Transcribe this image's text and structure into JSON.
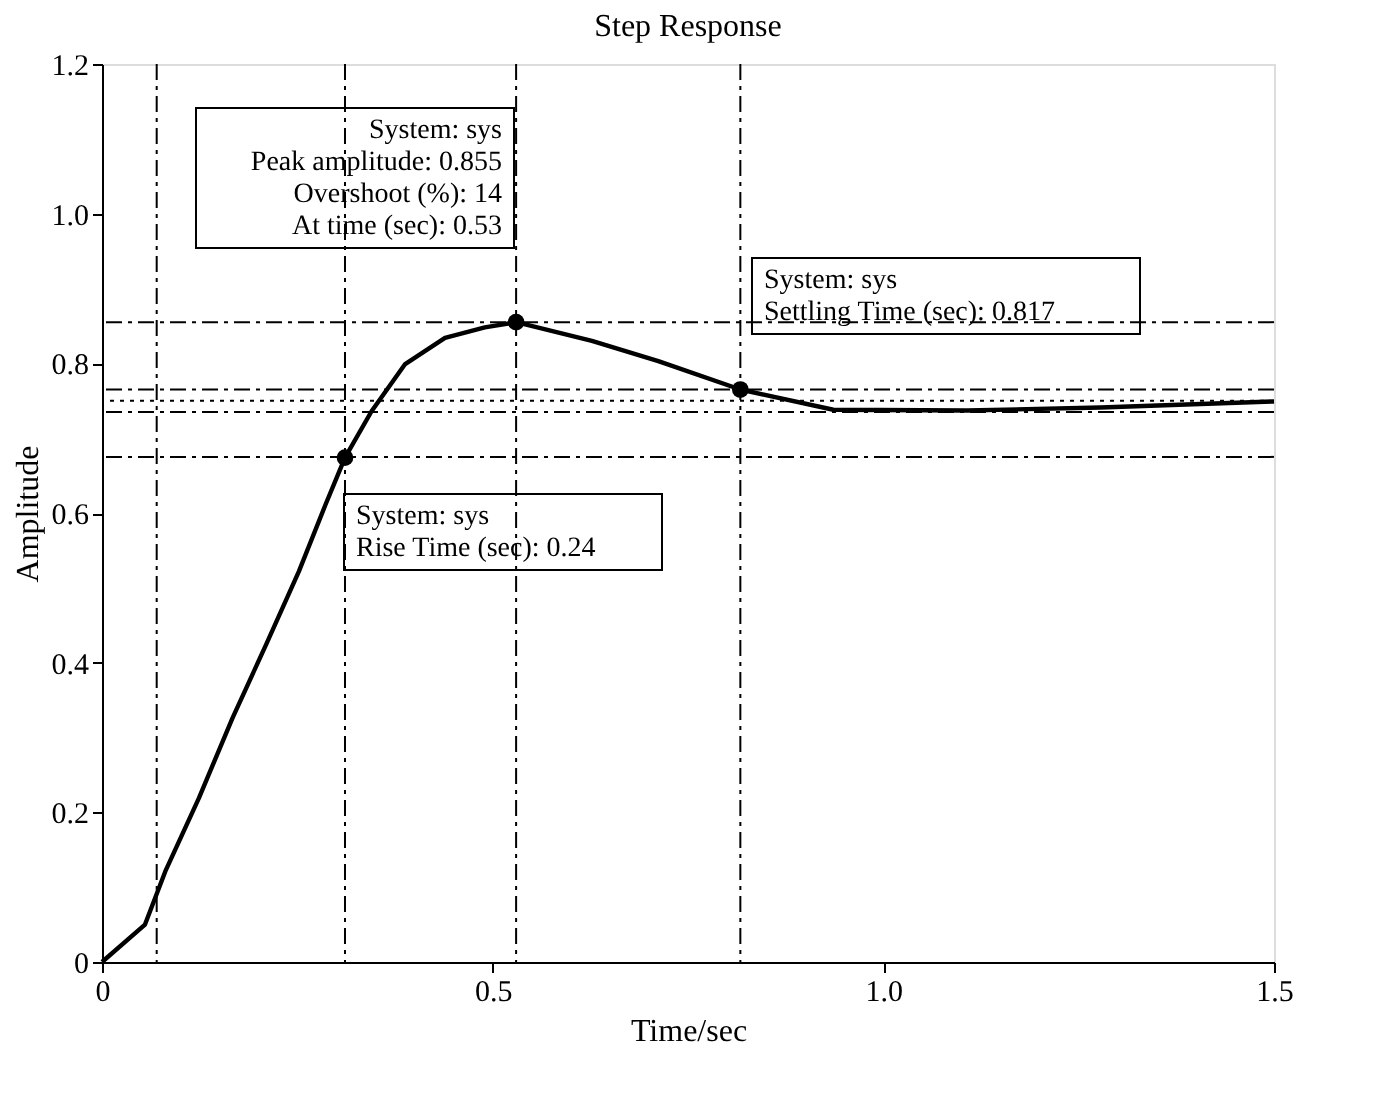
{
  "chart_data": {
    "type": "line",
    "title": "Step Response",
    "xlabel": "Time/sec",
    "ylabel": "Amplitude",
    "xlim": [
      0,
      1.5
    ],
    "xticks": [
      0,
      0.5,
      {
        "value": 1.0,
        "label": "1.0"
      },
      1.5
    ],
    "ylim": [
      0,
      1.2
    ],
    "yticks": [
      0,
      0.2,
      0.4,
      0.6,
      0.8,
      {
        "value": 1.0,
        "label": "1.0"
      },
      1.2
    ],
    "grid": false,
    "series": [
      {
        "color": "#000000",
        "line_style": "solid",
        "x": [
          0,
          0.055,
          0.081,
          0.124,
          0.167,
          0.21,
          0.252,
          0.286,
          0.311,
          0.345,
          0.388,
          0.439,
          0.49,
          0.53,
          0.627,
          0.712,
          0.817,
          0.936,
          1.107,
          1.278,
          1.5
        ],
        "values": [
          0,
          0.05,
          0.121,
          0.219,
          0.326,
          0.424,
          0.522,
          0.611,
          0.674,
          0.736,
          0.799,
          0.834,
          0.848,
          0.855,
          0.83,
          0.803,
          0.765,
          0.738,
          0.737,
          0.741,
          0.749
        ]
      },
      {
        "type": "scatter",
        "color": "#000000",
        "marker": "circle",
        "x": [
          0.311,
          0.53,
          0.817
        ],
        "values": [
          0.674,
          0.855,
          0.765
        ]
      }
    ],
    "ref_lines": [
      {
        "axis": "y",
        "value": 0.855,
        "line_style": "dashed"
      },
      {
        "axis": "y",
        "value": 0.765,
        "line_style": "dashed"
      },
      {
        "axis": "y",
        "value": 0.75,
        "line_style": "dotted"
      },
      {
        "axis": "y",
        "value": 0.735,
        "line_style": "dashed"
      },
      {
        "axis": "y",
        "value": 0.675,
        "line_style": "dashed"
      },
      {
        "axis": "x",
        "value": 0.07,
        "line_style": "dashed"
      },
      {
        "axis": "x",
        "value": 0.311,
        "line_style": "dashed"
      },
      {
        "axis": "x",
        "value": 0.53,
        "line_style": "dashed"
      },
      {
        "axis": "x",
        "value": 0.817,
        "line_style": "dashed"
      }
    ],
    "annotations": [
      "System: sys\nPeak amplitude: 0.855\nOvershoot (%): 14\nAt time (sec): 0.53",
      "System: sys\nRise Time (sec): 0.24",
      "System: sys\nSettling Time (sec): 0.817"
    ]
  }
}
